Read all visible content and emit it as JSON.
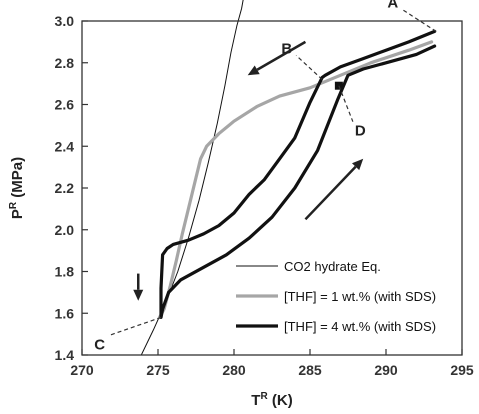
{
  "chart_data": {
    "type": "line",
    "xlabel": "T",
    "xlabel_sup": "R",
    "xlabel_unit": " (K)",
    "ylabel": "P",
    "ylabel_sup": "R",
    "ylabel_unit": " (MPa)",
    "xlim": [
      270,
      295
    ],
    "ylim": [
      1.4,
      3.0
    ],
    "xticks": [
      270,
      275,
      280,
      285,
      290,
      295
    ],
    "yticks": [
      "1.4",
      "1.6",
      "1.8",
      "2.0",
      "2.2",
      "2.4",
      "2.6",
      "2.8",
      "3.0"
    ],
    "grid": false,
    "legend_position": "bottom-right",
    "series": [
      {
        "name": "CO2 hydrate Eq.",
        "color": "#111111",
        "width": 1,
        "x": [
          273.9,
          274.7,
          275.5,
          276.3,
          277.0,
          277.7,
          278.3,
          278.9,
          279.4,
          279.8,
          280.2,
          280.5,
          280.7
        ],
        "y": [
          1.4,
          1.52,
          1.65,
          1.8,
          1.96,
          2.14,
          2.32,
          2.51,
          2.69,
          2.85,
          2.98,
          3.06,
          3.14
        ]
      },
      {
        "name": "[THF] = 1 wt.% (with SDS)",
        "color": "#a6a6a6",
        "width": 3.2,
        "x": [
          293.0,
          291.5,
          289.0,
          287.0,
          285.0,
          283.0,
          281.5,
          280.0,
          279.0,
          278.2,
          277.8,
          277.4,
          277.0,
          276.6,
          276.2,
          275.8,
          275.4,
          275.1
        ],
        "y": [
          2.9,
          2.86,
          2.8,
          2.74,
          2.68,
          2.64,
          2.59,
          2.52,
          2.46,
          2.4,
          2.34,
          2.22,
          2.1,
          1.98,
          1.85,
          1.73,
          1.62,
          1.58
        ]
      },
      {
        "name": "[THF] = 4 wt.% (with SDS)",
        "color": "#111111",
        "width": 3.2,
        "x": [
          293.2,
          291.5,
          290.0,
          288.5,
          287.0,
          286.0,
          285.8,
          285.0,
          284.0,
          283.0,
          282.0,
          281.0,
          280.0,
          279.0,
          278.0,
          277.0,
          276.0,
          275.6,
          275.3,
          275.2,
          275.2,
          275.3,
          275.7,
          276.5,
          278.0,
          279.5,
          281.0,
          282.5,
          284.0,
          285.5,
          286.8,
          287.5,
          288.5,
          290.0,
          292.0,
          293.2
        ],
        "y": [
          2.95,
          2.9,
          2.86,
          2.82,
          2.78,
          2.74,
          2.73,
          2.61,
          2.44,
          2.34,
          2.24,
          2.17,
          2.08,
          2.02,
          1.98,
          1.95,
          1.93,
          1.91,
          1.88,
          1.72,
          1.58,
          1.62,
          1.7,
          1.76,
          1.82,
          1.88,
          1.96,
          2.06,
          2.2,
          2.38,
          2.62,
          2.74,
          2.77,
          2.8,
          2.84,
          2.88
        ]
      }
    ],
    "annotations": [
      {
        "label": "A",
        "point": [
          293.3,
          2.95
        ]
      },
      {
        "label": "B",
        "point": [
          285.8,
          2.72
        ]
      },
      {
        "label": "C",
        "point": [
          275.2,
          1.58
        ]
      },
      {
        "label": "D",
        "point": [
          286.9,
          2.69
        ]
      }
    ]
  }
}
